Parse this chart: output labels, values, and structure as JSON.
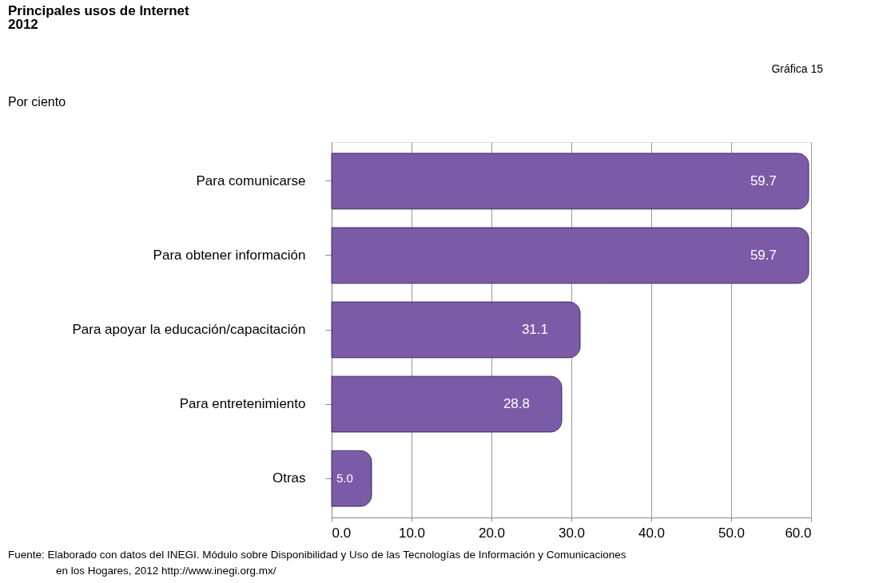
{
  "chart_data": {
    "type": "bar",
    "orientation": "horizontal",
    "title": "Principales usos de Internet",
    "subtitle": "2012",
    "categories": [
      "Para comunicarse",
      "Para obtener información",
      "Para apoyar la educación/capacitación",
      "Para entretenimiento",
      "Otras"
    ],
    "values": [
      59.7,
      59.7,
      31.1,
      28.8,
      5.0
    ],
    "color": "#7b5ba8",
    "value_labels": [
      "59.7",
      "59.7",
      "31.1",
      "28.8",
      "5.0"
    ],
    "grid": "x",
    "xlim": [
      0,
      60
    ],
    "xticks": [
      {
        "value": 0,
        "label": "0.0"
      },
      {
        "value": 10,
        "label": "10.0"
      },
      {
        "value": 20,
        "label": "20.0"
      },
      {
        "value": 30,
        "label": "30.0"
      },
      {
        "value": 40,
        "label": "40.0"
      },
      {
        "value": 50,
        "label": "50.0"
      },
      {
        "value": 60,
        "label": "60.0"
      }
    ],
    "annotations": [
      "Por ciento",
      "Gráfica 15",
      "Fuente: Elaborado con datos del INEGI. Módulo sobre Disponibilidad y Uso de las Tecnologías de Información y Comunicaciones\nen los Hogares, 2012 http://www.inegi.org.mx/"
    ]
  }
}
